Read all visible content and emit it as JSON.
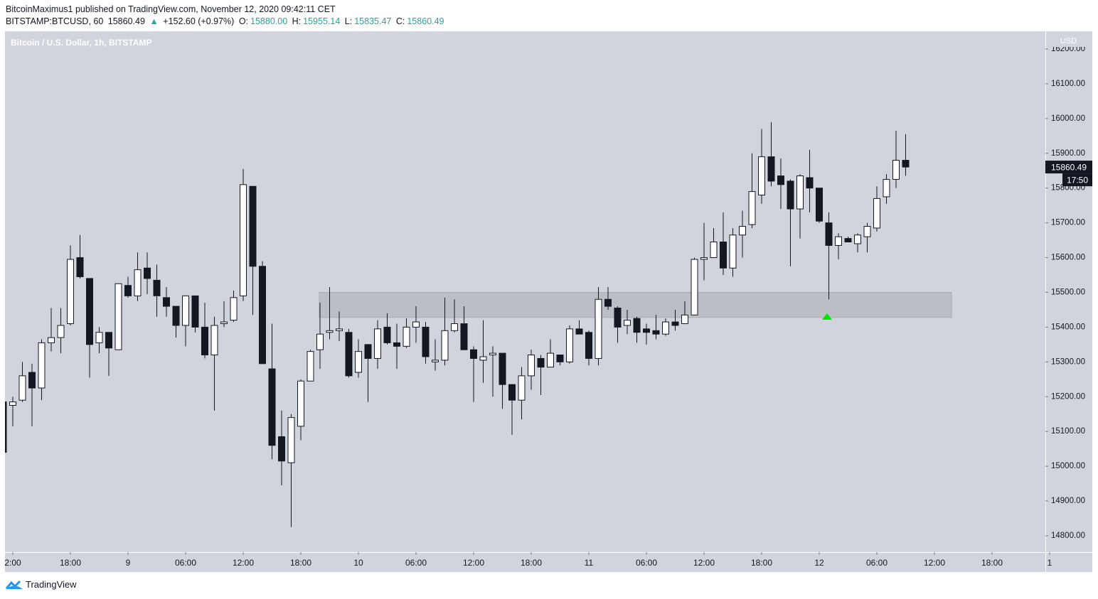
{
  "header": {
    "line1": "BitcoinMaximus1 published on TradingView.com, November 12, 2020 09:42:11 CET",
    "symbol": "BITSTAMP:BTCUSD, 60",
    "last": "15860.49",
    "arrow": "▲",
    "change": "+152.60 (+0.97%)",
    "o_label": "O:",
    "o": "15880.00",
    "h_label": "H:",
    "h": "15955.14",
    "l_label": "L:",
    "l": "15835.47",
    "c_label": "C:",
    "c": "15860.49"
  },
  "footer": {
    "logo": "TradingView"
  },
  "chart_data": {
    "type": "candlestick",
    "title": "Bitcoin / U.S. Dollar, 1h, BITSTAMP",
    "y_axis_label": "USD",
    "countdown": "17:50",
    "up_color": "#ffffff",
    "down_color": "#131722",
    "categories": [
      null,
      "2:00",
      null,
      null,
      null,
      null,
      null,
      "18:00",
      null,
      null,
      null,
      null,
      null,
      "9",
      null,
      null,
      null,
      null,
      null,
      "06:00",
      null,
      null,
      null,
      null,
      null,
      "12:00",
      null,
      null,
      null,
      null,
      null,
      "18:00",
      null,
      null,
      null,
      null,
      null,
      "10",
      null,
      null,
      null,
      null,
      null,
      "06:00",
      null,
      null,
      null,
      null,
      null,
      "12:00",
      null,
      null,
      null,
      null,
      null,
      "18:00",
      null,
      null,
      null,
      null,
      null,
      "11",
      null,
      null,
      null,
      null,
      null,
      "06:00",
      null,
      null,
      null,
      null,
      null,
      "12:00",
      null,
      null,
      null,
      null,
      null,
      "18:00",
      null,
      null,
      null,
      null,
      null,
      "12",
      null,
      null,
      null,
      null,
      null,
      "06:00",
      null,
      null,
      null,
      null,
      null,
      "12:00",
      null,
      null,
      null,
      null,
      null,
      "18:00",
      null,
      null,
      null,
      null,
      null,
      "1"
    ],
    "open": [
      15185,
      15175,
      15190,
      15270,
      15225,
      15355,
      15370,
      15410,
      15600,
      15540,
      15355,
      15385,
      15335,
      15520,
      15490,
      15570,
      15535,
      15485,
      15460,
      15405,
      15490,
      15400,
      15320,
      15410,
      15420,
      15490,
      15805,
      15575,
      15280,
      15085,
      15010,
      15115,
      15245,
      15335,
      15385,
      15390,
      15385,
      15270,
      15350,
      15310,
      15400,
      15355,
      15345,
      15400,
      15400,
      15300,
      15305,
      15390,
      15410,
      15335,
      15305,
      15320,
      15325,
      15235,
      15190,
      15260,
      15310,
      15285,
      15320,
      15300,
      15395,
      15385,
      15310,
      15480,
      15455,
      15405,
      15425,
      15395,
      15390,
      15380,
      15415,
      15410,
      15435,
      15595,
      15600,
      15645,
      15570,
      15665,
      15695,
      15780,
      15890,
      15835,
      15820,
      15740,
      15830,
      15800,
      15700,
      15635,
      15655,
      15640,
      15660,
      15685,
      15775,
      15825,
      15880,
      null,
      null,
      null,
      null,
      null,
      null,
      null,
      null,
      null,
      null,
      null,
      null,
      null,
      null,
      null
    ],
    "high": [
      15190,
      15200,
      15300,
      15295,
      15365,
      15455,
      15455,
      15635,
      15665,
      15540,
      15400,
      15385,
      15525,
      15545,
      15615,
      15615,
      15580,
      15515,
      15460,
      15490,
      15490,
      15470,
      15430,
      15475,
      15505,
      15855,
      15805,
      15590,
      15410,
      15160,
      15150,
      15250,
      15335,
      15470,
      15515,
      15445,
      15395,
      15365,
      15350,
      15420,
      15440,
      15410,
      15425,
      15460,
      15415,
      15365,
      15485,
      15480,
      15460,
      15345,
      15420,
      15345,
      15325,
      15235,
      15285,
      15335,
      15320,
      15365,
      15320,
      15405,
      15420,
      15390,
      15515,
      15515,
      15460,
      15450,
      15430,
      15410,
      15435,
      15425,
      15450,
      15475,
      15600,
      15700,
      15685,
      15730,
      15685,
      15735,
      15900,
      15970,
      15990,
      15885,
      15825,
      15840,
      15910,
      15800,
      15730,
      15670,
      15660,
      15670,
      15700,
      15805,
      15840,
      15965,
      15955.14,
      null,
      null,
      null,
      null,
      null,
      null,
      null,
      null,
      null,
      null,
      null,
      null,
      null,
      null,
      null
    ],
    "low": [
      15035,
      15115,
      15185,
      15115,
      15190,
      15330,
      15325,
      15405,
      15540,
      15255,
      15325,
      15260,
      15335,
      15485,
      15475,
      15495,
      15430,
      15430,
      15370,
      15345,
      15385,
      15310,
      15160,
      15400,
      15415,
      15475,
      15435,
      15295,
      15020,
      14945,
      14825,
      15075,
      15245,
      15280,
      15365,
      15360,
      15255,
      15255,
      15185,
      15280,
      15350,
      15280,
      15340,
      15355,
      15295,
      15275,
      15290,
      15385,
      15335,
      15185,
      15240,
      15200,
      15165,
      15090,
      15135,
      15220,
      15205,
      15285,
      15290,
      15295,
      15380,
      15290,
      15290,
      15450,
      15355,
      15380,
      15355,
      15350,
      15365,
      15375,
      15390,
      15410,
      15435,
      15535,
      15600,
      15550,
      15545,
      15600,
      15685,
      15755,
      15805,
      15740,
      15575,
      15655,
      15730,
      15700,
      15480,
      15595,
      15645,
      15615,
      15615,
      15675,
      15755,
      15800,
      15835.47,
      null,
      null,
      null,
      null,
      null,
      null,
      null,
      null,
      null,
      null,
      null,
      null,
      null,
      null,
      null
    ],
    "close": [
      15040,
      15185,
      15260,
      15225,
      15355,
      15370,
      15405,
      15595,
      15545,
      15350,
      15385,
      15340,
      15525,
      15490,
      15565,
      15540,
      15490,
      15460,
      15405,
      15490,
      15400,
      15320,
      15405,
      15415,
      15485,
      15810,
      15575,
      15295,
      15060,
      15015,
      15140,
      15245,
      15330,
      15380,
      15390,
      15395,
      15260,
      15330,
      15310,
      15395,
      15355,
      15345,
      15400,
      15415,
      15315,
      15305,
      15390,
      15410,
      15335,
      15310,
      15315,
      15325,
      15235,
      15190,
      15260,
      15320,
      15285,
      15325,
      15300,
      15395,
      15380,
      15310,
      15480,
      15460,
      15400,
      15420,
      15385,
      15385,
      15380,
      15415,
      15405,
      15435,
      15595,
      15600,
      15645,
      15570,
      15665,
      15690,
      15790,
      15890,
      15820,
      15810,
      15740,
      15835,
      15800,
      15705,
      15635,
      15660,
      15645,
      15665,
      15690,
      15770,
      15825,
      15880,
      15860.49,
      null,
      null,
      null,
      null,
      null,
      null,
      null,
      null,
      null,
      null,
      null,
      null,
      null,
      null,
      null
    ],
    "zone": {
      "low": 15428,
      "high": 15500
    },
    "ylim": [
      14753,
      16251
    ],
    "yticks": [
      {
        "value": 14800,
        "label": "14800.00"
      },
      {
        "value": 14900,
        "label": "14900.00"
      },
      {
        "value": 15000,
        "label": "15000.00"
      },
      {
        "value": 15100,
        "label": "15100.00"
      },
      {
        "value": 15200,
        "label": "15200.00"
      },
      {
        "value": 15300,
        "label": "15300.00"
      },
      {
        "value": 15400,
        "label": "15400.00"
      },
      {
        "value": 15500,
        "label": "15500.00"
      },
      {
        "value": 15600,
        "label": "15600.00"
      },
      {
        "value": 15700,
        "label": "15700.00"
      },
      {
        "value": 15800,
        "label": "15800.00"
      },
      {
        "value": 15900,
        "label": "15900.00"
      },
      {
        "value": 16000,
        "label": "16000.00"
      },
      {
        "value": 16100,
        "label": "16100.00"
      },
      {
        "value": 16200,
        "label": "16200.00"
      }
    ]
  }
}
